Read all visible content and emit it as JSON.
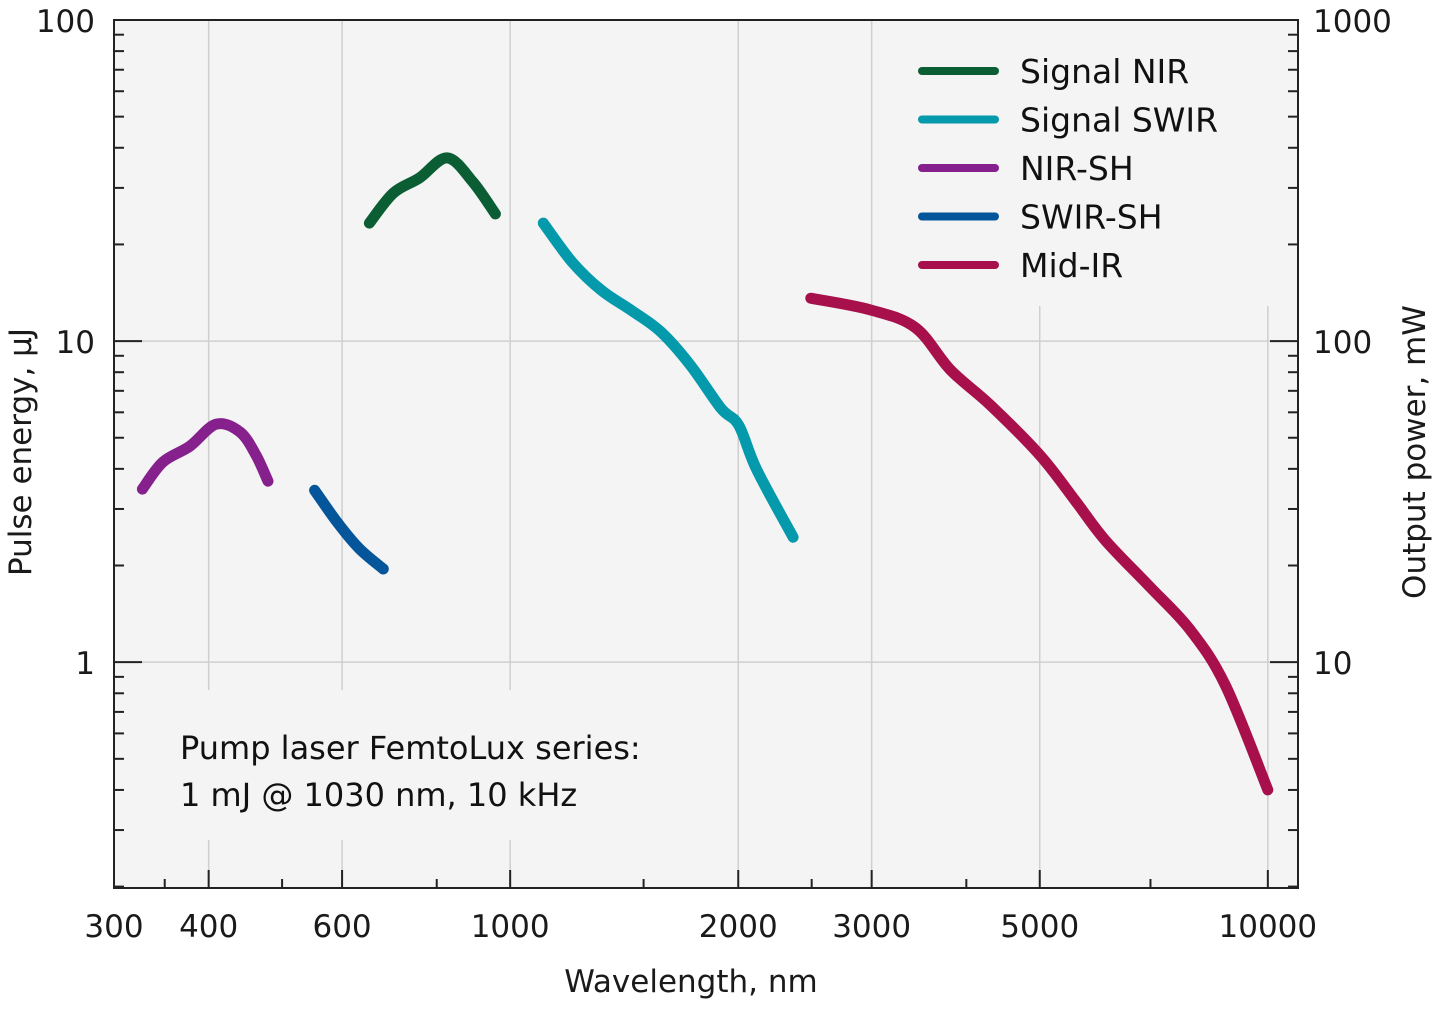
{
  "chart_data": {
    "type": "line",
    "title": "",
    "xlabel": "Wavelength, nm",
    "ylabel": "Pulse energy, µJ",
    "y2label": "Output power, mW",
    "xscale": "log",
    "yscale": "log",
    "xlim": [
      300,
      10960
    ],
    "ylim": [
      0.198,
      100
    ],
    "y2lim": [
      1.98,
      1000
    ],
    "grid": true,
    "legend_position": "top-right",
    "xticks": [
      300,
      400,
      600,
      1000,
      2000,
      3000,
      5000,
      10000
    ],
    "xtick_labels": [
      "300",
      "400",
      "600",
      "1000",
      "2000",
      "3000",
      "5000",
      "10000"
    ],
    "xminor_ticks": [
      350,
      500,
      800,
      1500,
      2500,
      4000,
      7000
    ],
    "yticks": [
      1,
      10,
      100
    ],
    "ytick_labels": [
      "1",
      "10",
      "100"
    ],
    "y2ticks": [
      10,
      100,
      1000
    ],
    "y2tick_labels": [
      "10",
      "100",
      "1000"
    ],
    "annotation": [
      "Pump laser FemtoLux series:",
      "1 mJ @ 1030 nm, 10 kHz"
    ],
    "series": [
      {
        "name": "Signal NIR",
        "color": "#0b5e34",
        "x": [
          652,
          701,
          759,
          826,
          893,
          956
        ],
        "y": [
          23.3,
          28.9,
          32.2,
          37.2,
          31.3,
          24.9
        ]
      },
      {
        "name": "Signal SWIR",
        "color": "#0499ab",
        "x": [
          1106,
          1208,
          1319,
          1443,
          1580,
          1729,
          1897,
          2003,
          2116,
          2363
        ],
        "y": [
          23.3,
          17.6,
          14.4,
          12.5,
          10.7,
          8.42,
          6.18,
          5.47,
          3.97,
          2.45
        ]
      },
      {
        "name": "NIR-SH",
        "color": "#86208c",
        "x": [
          327,
          348,
          378,
          409,
          440,
          462,
          479
        ],
        "y": [
          3.46,
          4.2,
          4.71,
          5.51,
          5.21,
          4.41,
          3.66
        ]
      },
      {
        "name": "SWIR-SH",
        "color": "#04559a",
        "x": [
          552,
          591,
          632,
          680
        ],
        "y": [
          3.43,
          2.73,
          2.26,
          1.95
        ]
      },
      {
        "name": "Mid-IR",
        "color": "#a8104c",
        "x": [
          2493,
          2991,
          3429,
          3812,
          4304,
          5003,
          5561,
          6098,
          6999,
          7898,
          8788,
          10000
        ],
        "y": [
          13.6,
          12.5,
          11.0,
          8.13,
          6.32,
          4.41,
          3.2,
          2.4,
          1.71,
          1.26,
          0.848,
          0.4
        ]
      }
    ]
  }
}
